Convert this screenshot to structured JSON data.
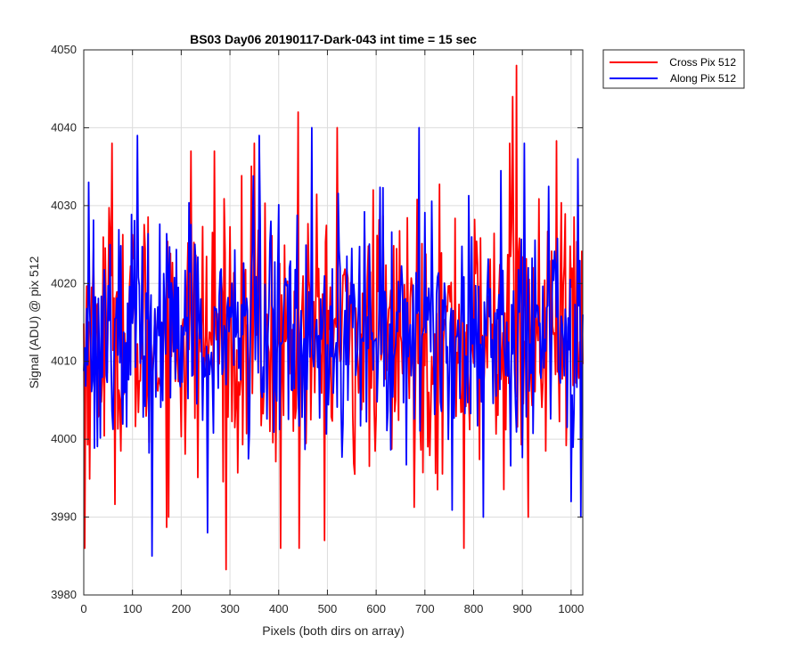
{
  "chart_data": {
    "type": "line",
    "title": "BS03 Day06 20190117-Dark-043 int time = 15 sec",
    "xlabel": "Pixels (both dirs on array)",
    "ylabel": "Signal (ADU) @ pix 512",
    "xlim": [
      0,
      1024
    ],
    "ylim": [
      3980,
      4050
    ],
    "xticks": [
      0,
      100,
      200,
      300,
      400,
      500,
      600,
      700,
      800,
      900,
      1000
    ],
    "yticks": [
      3980,
      3990,
      4000,
      4010,
      4020,
      4030,
      4040,
      4050
    ],
    "grid": true,
    "legend_position": "outside-top-right",
    "series": [
      {
        "name": "Cross Pix 512",
        "color": "#ff0000",
        "noise_sigma": 8.5,
        "x_step": 2,
        "mean": 4013,
        "peaks": [
          {
            "x": 2,
            "y": 3986
          },
          {
            "x": 58,
            "y": 4038
          },
          {
            "x": 220,
            "y": 4037
          },
          {
            "x": 268,
            "y": 4037
          },
          {
            "x": 350,
            "y": 4038
          },
          {
            "x": 405,
            "y": 3986
          },
          {
            "x": 440,
            "y": 4042
          },
          {
            "x": 442,
            "y": 3986
          },
          {
            "x": 520,
            "y": 4040
          },
          {
            "x": 780,
            "y": 3986
          },
          {
            "x": 875,
            "y": 4038
          },
          {
            "x": 880,
            "y": 4044
          },
          {
            "x": 888,
            "y": 4048
          },
          {
            "x": 912,
            "y": 3990
          }
        ]
      },
      {
        "name": "Along Pix 512",
        "color": "#0000ff",
        "noise_sigma": 7.5,
        "x_step": 2,
        "mean": 4014,
        "peaks": [
          {
            "x": 10,
            "y": 4033
          },
          {
            "x": 110,
            "y": 4039
          },
          {
            "x": 140,
            "y": 3985
          },
          {
            "x": 255,
            "y": 3988
          },
          {
            "x": 360,
            "y": 4039
          },
          {
            "x": 468,
            "y": 4040
          },
          {
            "x": 688,
            "y": 4040
          },
          {
            "x": 820,
            "y": 3990
          },
          {
            "x": 905,
            "y": 4038
          },
          {
            "x": 1000,
            "y": 3992
          },
          {
            "x": 1015,
            "y": 4036
          },
          {
            "x": 1020,
            "y": 3990
          }
        ]
      }
    ]
  }
}
